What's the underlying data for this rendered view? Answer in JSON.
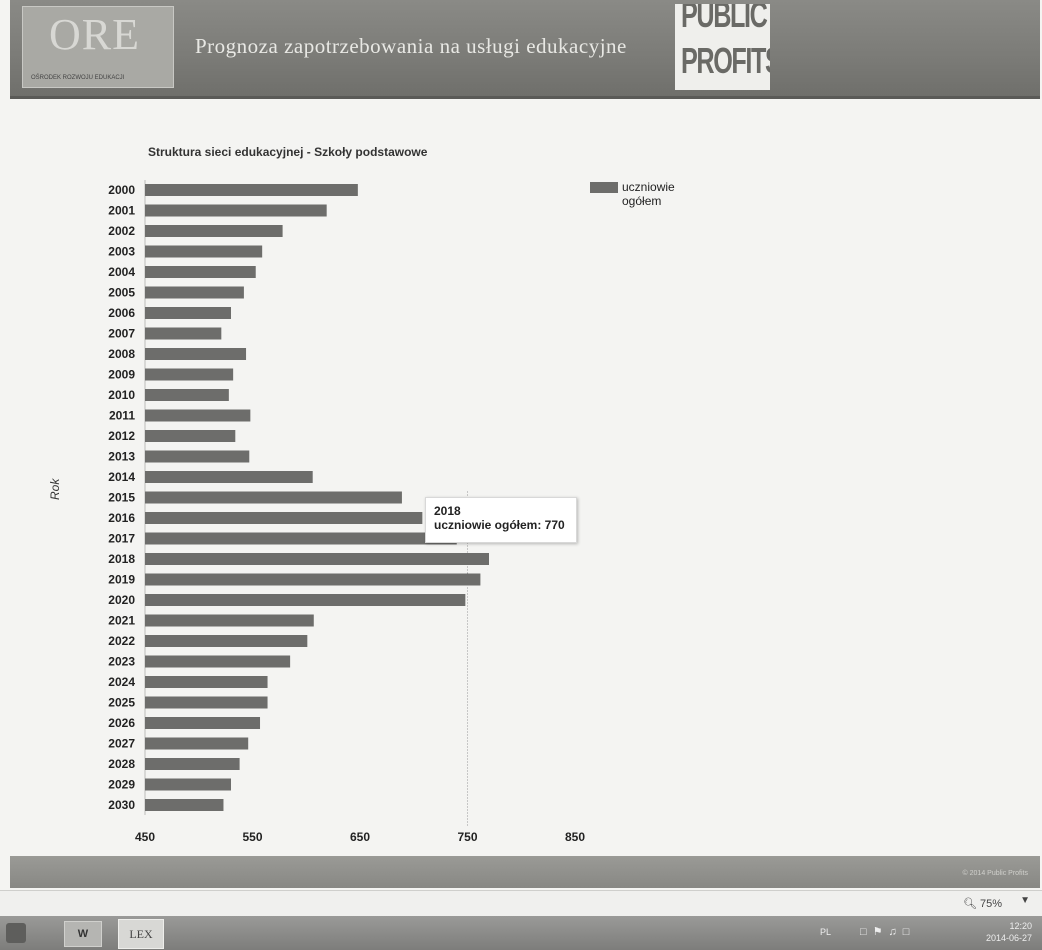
{
  "header": {
    "logo_text": "ORE",
    "logo_subtitle": "OŚRODEK ROZWOJU EDUKACJI",
    "title": "Prognoza zapotrzebowania na usługi edukacyjne",
    "partner_logo_line1": "PUBLIC",
    "partner_logo_line2": "PROFITS"
  },
  "chart_data": {
    "type": "bar",
    "orientation": "horizontal",
    "title": "Struktura sieci edukacyjnej - Szkoły podstawowe",
    "xlabel": "",
    "ylabel": "Rok",
    "xlim": [
      450,
      850
    ],
    "xticks": [
      "450",
      "550",
      "650",
      "750",
      "850"
    ],
    "legend_position": "top-right",
    "categories": [
      "2000",
      "2001",
      "2002",
      "2003",
      "2004",
      "2005",
      "2006",
      "2007",
      "2008",
      "2009",
      "2010",
      "2011",
      "2012",
      "2013",
      "2014",
      "2015",
      "2016",
      "2017",
      "2018",
      "2019",
      "2020",
      "2021",
      "2022",
      "2023",
      "2024",
      "2025",
      "2026",
      "2027",
      "2028",
      "2029",
      "2030"
    ],
    "series": [
      {
        "name": "uczniowie ogółem",
        "color": "#6d6d6b",
        "values": [
          648,
          619,
          578,
          559,
          553,
          542,
          530,
          521,
          544,
          532,
          528,
          548,
          534,
          547,
          606,
          689,
          708,
          740,
          770,
          762,
          748,
          607,
          601,
          585,
          564,
          564,
          557,
          546,
          538,
          530,
          523
        ]
      }
    ],
    "tooltip": {
      "year": "2018",
      "label": "uczniowie ogółem: 770"
    },
    "grid": false
  },
  "footer": {
    "copyright": "© 2014 Public Profits"
  },
  "statusbar": {
    "zoom": "75%",
    "zoom_icon": "magnifier-icon"
  },
  "taskbar": {
    "word_label": "W",
    "lex_label": "LEX",
    "language": "PL",
    "clock_time": "12:20",
    "clock_date": "2014-06-27"
  }
}
